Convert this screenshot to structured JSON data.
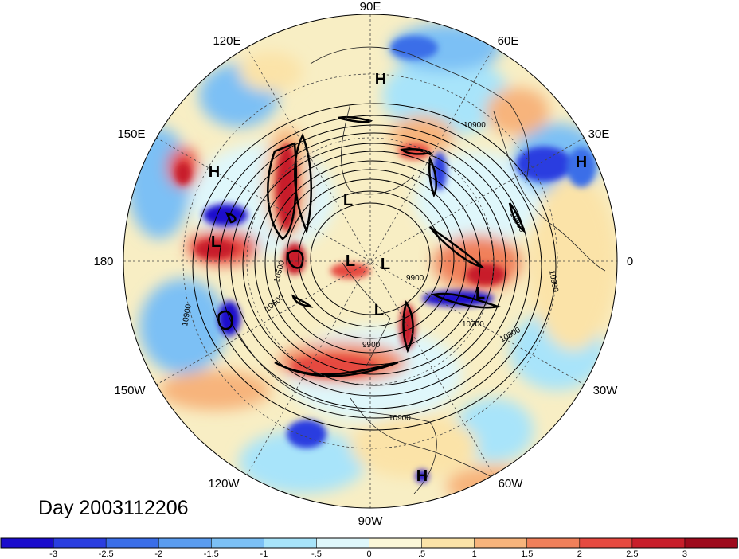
{
  "title": "Day 2003112206",
  "longitude_labels": [
    "90E",
    "60E",
    "30E",
    "0",
    "30W",
    "60W",
    "90W",
    "120W",
    "150W",
    "180",
    "150E",
    "120E"
  ],
  "pressure_systems": [
    {
      "type": "H",
      "text": "H"
    },
    {
      "type": "H",
      "text": "H"
    },
    {
      "type": "H",
      "text": "H"
    },
    {
      "type": "H",
      "text": "H"
    },
    {
      "type": "L",
      "text": "L"
    },
    {
      "type": "L",
      "text": "L"
    },
    {
      "type": "L",
      "text": "L"
    },
    {
      "type": "L",
      "text": "L"
    },
    {
      "type": "L",
      "text": "L"
    },
    {
      "type": "L",
      "text": "L"
    }
  ],
  "contour_labels": [
    "10900",
    "10900",
    "10900",
    "10800",
    "10700",
    "9900",
    "9900",
    "10600",
    "10500",
    "10900",
    "10900"
  ],
  "colorbar": {
    "ticks": [
      "-3",
      "-2.5",
      "-2",
      "-1.5",
      "-1",
      "-.5",
      "0",
      ".5",
      "1",
      "1.5",
      "2",
      "2.5",
      "3"
    ],
    "colors": [
      "#1a0ccc",
      "#2a3ee0",
      "#3a6ee8",
      "#5a9cef",
      "#7cc0f5",
      "#a8e4fa",
      "#dff7fb",
      "#fbf7d8",
      "#fbe3a8",
      "#f7b47c",
      "#f0805a",
      "#e64a40",
      "#c81e2a",
      "#9e0a1c"
    ]
  }
}
